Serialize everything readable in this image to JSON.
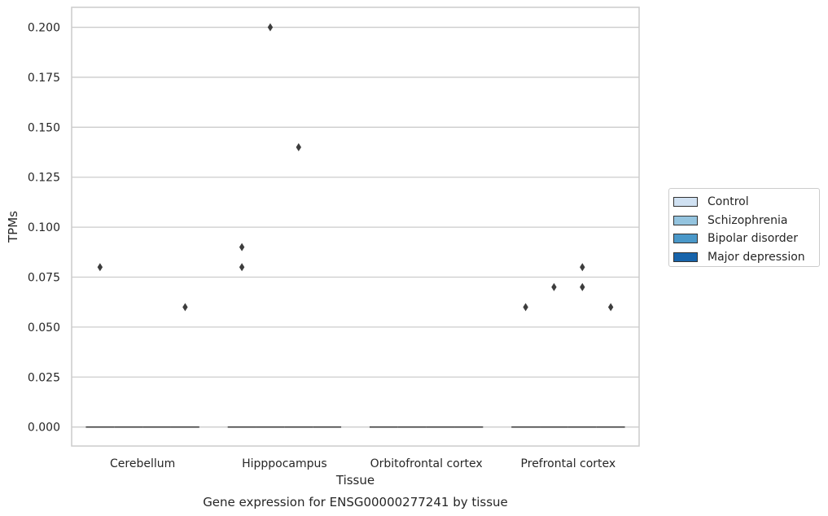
{
  "chart_data": {
    "type": "box",
    "title": "Gene expression for ENSG00000277241 by tissue",
    "xlabel": "Tissue",
    "ylabel": "TPMs",
    "ylim": [
      -0.0095,
      0.21
    ],
    "yticks": [
      "0.000",
      "0.025",
      "0.050",
      "0.075",
      "0.100",
      "0.125",
      "0.150",
      "0.175",
      "0.200"
    ],
    "categories": [
      "Cerebellum",
      "Hipppocampus",
      "Orbitofrontal cortex",
      "Prefrontal cortex"
    ],
    "grid": true,
    "legend_placement": "right",
    "series": [
      {
        "name": "Control",
        "color": "#d0e1f2",
        "boxes": [
          {
            "median": 0
          },
          {
            "median": 0
          },
          {
            "median": 0
          },
          {
            "median": 0
          }
        ],
        "outliers": [
          [
            0.08
          ],
          [
            0.09,
            0.08
          ],
          [],
          [
            0.06
          ]
        ]
      },
      {
        "name": "Schizophrenia",
        "color": "#94c4df",
        "boxes": [
          {
            "median": 0
          },
          {
            "median": 0
          },
          {
            "median": 0
          },
          {
            "median": 0
          }
        ],
        "outliers": [
          [],
          [
            0.2
          ],
          [],
          [
            0.07
          ]
        ]
      },
      {
        "name": "Bipolar disorder",
        "color": "#4a98c9",
        "boxes": [
          {
            "median": 0
          },
          {
            "median": 0
          },
          {
            "median": 0
          },
          {
            "median": 0
          }
        ],
        "outliers": [
          [],
          [
            0.14
          ],
          [],
          [
            0.08,
            0.07
          ]
        ]
      },
      {
        "name": "Major depression",
        "color": "#1764ab",
        "boxes": [
          {
            "median": 0
          },
          {
            "median": 0
          },
          {
            "median": 0
          },
          {
            "median": 0
          }
        ],
        "outliers": [
          [
            0.06
          ],
          [],
          [],
          [
            0.06
          ]
        ]
      }
    ]
  }
}
